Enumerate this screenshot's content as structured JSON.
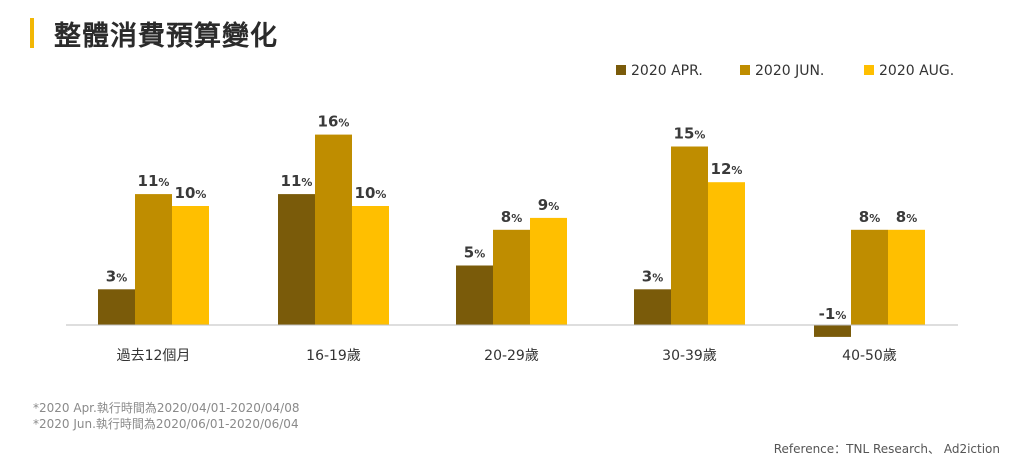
{
  "title": "整體消費預算變化",
  "notes": [
    "*2020 Apr.執行時間為2020/04/01-2020/04/08",
    "*2020 Jun.執行時間為2020/06/01-2020/06/04"
  ],
  "reference": "Reference：TNL Research、 Ad2iction",
  "value_suffix": "%",
  "chart_data": {
    "type": "bar",
    "categories": [
      "過去12個月",
      "16-19歲",
      "20-29歲",
      "30-39歲",
      "40-50歲"
    ],
    "series": [
      {
        "name": "2020 APR.",
        "color": "#7A5B0A",
        "values": [
          3,
          11,
          5,
          3,
          -1
        ]
      },
      {
        "name": "2020 JUN.",
        "color": "#BF8D00",
        "values": [
          11,
          16,
          8,
          15,
          8
        ]
      },
      {
        "name": "2020 AUG.",
        "color": "#FFBF00",
        "values": [
          10,
          10,
          9,
          12,
          8
        ]
      }
    ],
    "ylim": [
      -1,
      16
    ],
    "grid": false,
    "legend": "top-right",
    "xlabel": "",
    "ylabel": ""
  }
}
